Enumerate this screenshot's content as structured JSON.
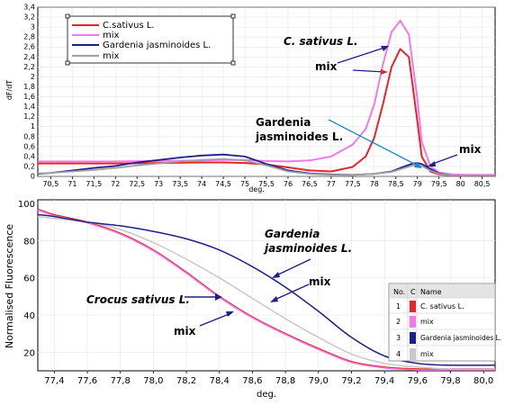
{
  "chart_data": [
    {
      "type": "line",
      "ylabel": "dF/dT",
      "xlabel": "deg.",
      "x_ticks": [
        "70,5",
        "71",
        "71,5",
        "72",
        "72,5",
        "73",
        "73,5",
        "74",
        "74,5",
        "75",
        "75,5",
        "76",
        "76,5",
        "77",
        "77,5",
        "78",
        "78,5",
        "79",
        "79,5",
        "80",
        "80,5"
      ],
      "y_ticks": [
        "0",
        "0,2",
        "0,4",
        "0,6",
        "0,8",
        "1",
        "1,2",
        "1,4",
        "1,6",
        "1,8",
        "2",
        "2,2",
        "2,4",
        "2,6",
        "2,8",
        "3",
        "3,2",
        "3,4"
      ],
      "xlim": [
        70.2,
        80.8
      ],
      "ylim": [
        0,
        3.4
      ],
      "legend": {
        "placement": "top-left",
        "entries": [
          {
            "label": "C.sativus L.",
            "color": "#e8232b"
          },
          {
            "label": "mix",
            "color": "#f07ae8"
          },
          {
            "label": "Gardenia jasminoides L.",
            "color": "#1f1f8c"
          },
          {
            "label": "mix",
            "color": "#a0a0a0"
          }
        ]
      },
      "series": [
        {
          "color": "#e8232b",
          "x": [
            70.2,
            71,
            72,
            73,
            74,
            74.5,
            75,
            75.5,
            76,
            76.5,
            77,
            77.5,
            77.8,
            78,
            78.2,
            78.4,
            78.6,
            78.8,
            79,
            79.1,
            79.3,
            79.5,
            79.8,
            80.2,
            80.8
          ],
          "y": [
            0.26,
            0.26,
            0.26,
            0.27,
            0.28,
            0.28,
            0.27,
            0.24,
            0.18,
            0.12,
            0.1,
            0.19,
            0.4,
            0.78,
            1.45,
            2.2,
            2.56,
            2.4,
            1.1,
            0.4,
            0.1,
            0.04,
            0.02,
            0.02,
            0.02
          ]
        },
        {
          "color": "#f07ae8",
          "x": [
            70.2,
            71,
            72,
            73,
            74,
            74.5,
            75,
            75.5,
            76,
            76.5,
            77,
            77.5,
            77.8,
            78,
            78.2,
            78.4,
            78.6,
            78.8,
            79,
            79.1,
            79.3,
            79.5,
            79.8,
            80.2,
            80.8
          ],
          "y": [
            0.3,
            0.3,
            0.3,
            0.31,
            0.32,
            0.33,
            0.33,
            0.31,
            0.3,
            0.32,
            0.4,
            0.64,
            0.95,
            1.45,
            2.25,
            2.9,
            3.13,
            2.85,
            1.55,
            0.7,
            0.2,
            0.08,
            0.04,
            0.03,
            0.03
          ]
        },
        {
          "color": "#1f1f8c",
          "x": [
            70.2,
            70.5,
            71,
            71.5,
            72,
            72.5,
            73,
            73.5,
            74,
            74.5,
            75,
            75.5,
            76,
            76.5,
            77,
            77.5,
            78,
            78.4,
            78.7,
            78.9,
            79,
            79.1,
            79.3,
            79.5,
            79.8,
            80.2,
            80.8
          ],
          "y": [
            0.05,
            0.07,
            0.12,
            0.17,
            0.21,
            0.28,
            0.33,
            0.38,
            0.42,
            0.44,
            0.4,
            0.25,
            0.12,
            0.06,
            0.04,
            0.03,
            0.05,
            0.1,
            0.2,
            0.26,
            0.27,
            0.25,
            0.15,
            0.06,
            0.02,
            0.02,
            0.02
          ]
        },
        {
          "color": "#a0a0a0",
          "x": [
            70.2,
            70.5,
            71,
            71.5,
            72,
            72.5,
            73,
            73.5,
            74,
            74.5,
            75,
            75.5,
            76,
            76.5,
            77,
            77.5,
            78,
            78.4,
            78.7,
            78.9,
            79,
            79.1,
            79.3,
            79.5,
            79.8,
            80.2,
            80.8
          ],
          "y": [
            0.06,
            0.07,
            0.1,
            0.13,
            0.17,
            0.22,
            0.26,
            0.3,
            0.33,
            0.35,
            0.32,
            0.22,
            0.1,
            0.05,
            0.03,
            0.03,
            0.05,
            0.09,
            0.17,
            0.22,
            0.23,
            0.21,
            0.12,
            0.05,
            0.02,
            0.02,
            0.02
          ]
        }
      ],
      "annotations": [
        {
          "text": "C. sativus L."
        },
        {
          "text": "mix"
        },
        {
          "text": "Gardenia"
        },
        {
          "text": "jasminoides L."
        },
        {
          "text": "mix"
        }
      ]
    },
    {
      "type": "line",
      "ylabel": "Normalised Fluorescence",
      "xlabel": "deg.",
      "x_ticks": [
        "77,4",
        "77,6",
        "77,8",
        "78,0",
        "78,2",
        "78,4",
        "78,6",
        "78,8",
        "79,0",
        "79,2",
        "79,4",
        "79,6",
        "79,8",
        "80,0"
      ],
      "y_ticks": [
        "20",
        "40",
        "60",
        "80",
        "100"
      ],
      "xlim": [
        77.3,
        80.07
      ],
      "ylim": [
        10,
        102
      ],
      "legend": {
        "placement": "bottom-right",
        "headers": [
          "No.",
          "C",
          "Name"
        ],
        "rows": [
          {
            "no": "1",
            "color": "#e8232b",
            "name": "C. sativus L."
          },
          {
            "no": "2",
            "color": "#f07ae8",
            "name": "mix"
          },
          {
            "no": "3",
            "color": "#1f1f8c",
            "name": "Gardenia jasminoides L."
          },
          {
            "no": "4",
            "color": "#c8c8c8",
            "name": "mix"
          }
        ]
      },
      "series": [
        {
          "color": "#e8232b",
          "x": [
            77.3,
            77.4,
            77.6,
            77.8,
            78.0,
            78.2,
            78.4,
            78.6,
            78.8,
            79.0,
            79.2,
            79.4,
            79.6,
            79.8,
            80.07
          ],
          "y": [
            97,
            94,
            90,
            84,
            75,
            63,
            50,
            39,
            30,
            22,
            15,
            12,
            11,
            11,
            11
          ]
        },
        {
          "color": "#f07ae8",
          "x": [
            77.3,
            77.4,
            77.6,
            77.8,
            78.0,
            78.2,
            78.4,
            78.6,
            78.8,
            79.0,
            79.2,
            79.4,
            79.6,
            79.8,
            80.07
          ],
          "y": [
            96.5,
            93.5,
            89.5,
            83.5,
            74.5,
            62.5,
            49.5,
            38.5,
            29.5,
            21.5,
            14.5,
            11.5,
            10.5,
            10.5,
            10.5
          ]
        },
        {
          "color": "#c8c8c8",
          "x": [
            77.3,
            77.4,
            77.6,
            77.8,
            78.0,
            78.2,
            78.4,
            78.6,
            78.8,
            79.0,
            79.2,
            79.4,
            79.6,
            79.8,
            80.07
          ],
          "y": [
            93,
            92,
            90,
            86,
            79,
            70,
            60,
            49,
            38,
            28,
            19,
            14,
            12,
            11,
            11
          ]
        },
        {
          "color": "#1f1f8c",
          "x": [
            77.3,
            77.4,
            77.6,
            77.8,
            78.0,
            78.2,
            78.4,
            78.6,
            78.8,
            79.0,
            79.2,
            79.4,
            79.6,
            79.8,
            80.07
          ],
          "y": [
            94,
            93,
            90,
            88,
            85,
            81,
            75,
            66,
            55,
            42,
            28,
            18,
            14,
            13,
            13
          ]
        }
      ],
      "annotations": [
        {
          "text": "Gardenia"
        },
        {
          "text": "jasminoides L."
        },
        {
          "text": "mix"
        },
        {
          "text": "Crocus sativus L."
        },
        {
          "text": "mix"
        }
      ]
    }
  ]
}
